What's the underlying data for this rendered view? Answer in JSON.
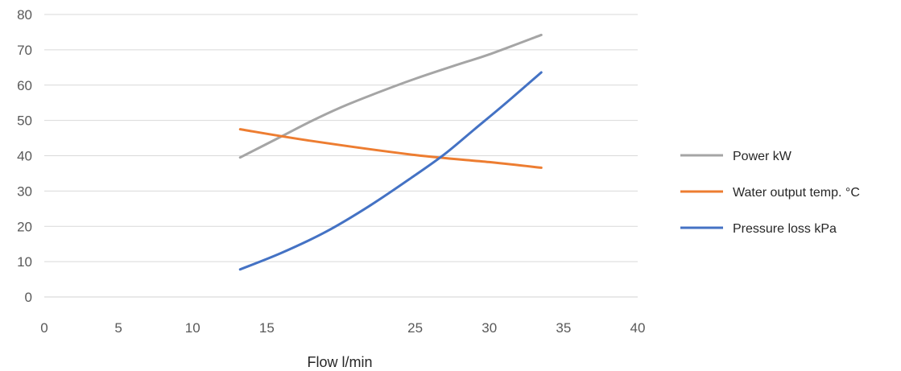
{
  "chart_data": {
    "type": "line",
    "title": "",
    "xlabel": "Flow l/min",
    "ylabel": "",
    "xlim": [
      0,
      40
    ],
    "ylim": [
      0,
      80
    ],
    "x_ticks": [
      "0",
      "5",
      "10",
      "15",
      "25",
      "30",
      "35",
      "40"
    ],
    "x_tick_values": [
      0,
      5,
      10,
      15,
      25,
      30,
      35,
      40
    ],
    "y_ticks": [
      "0",
      "10",
      "20",
      "30",
      "40",
      "50",
      "60",
      "70",
      "80"
    ],
    "y_tick_values": [
      0,
      10,
      20,
      30,
      40,
      50,
      60,
      70,
      80
    ],
    "grid": "horizontal",
    "legend_position": "right",
    "series": [
      {
        "name": "Power kW",
        "color": "#a5a5a5",
        "x": [
          13.2,
          16,
          18,
          20,
          22,
          25,
          28,
          30,
          33.5
        ],
        "y": [
          39.5,
          45.5,
          49.8,
          53.7,
          57.1,
          61.8,
          66.0,
          68.7,
          74.2
        ]
      },
      {
        "name": "Water output temp. °C",
        "color": "#ed7d31",
        "x": [
          13.2,
          18,
          25,
          30,
          33.5
        ],
        "y": [
          47.5,
          44.2,
          40.2,
          38.2,
          36.6
        ]
      },
      {
        "name": "Pressure loss kPa",
        "color": "#4472c4",
        "x": [
          13.2,
          16,
          19,
          22,
          25,
          27,
          29,
          31,
          33.5
        ],
        "y": [
          7.8,
          12.5,
          18.5,
          26.0,
          34.5,
          40.5,
          47.5,
          54.5,
          63.6
        ]
      }
    ]
  }
}
